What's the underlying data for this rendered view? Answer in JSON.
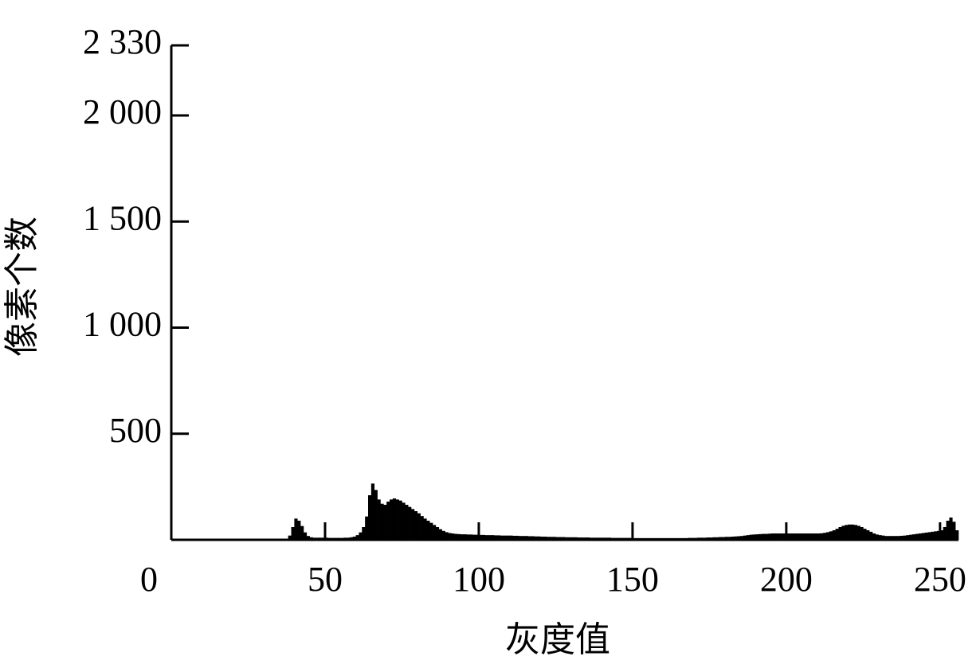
{
  "chart_data": {
    "type": "histogram",
    "x_label": "灰度值",
    "y_label": "像素个数",
    "bins": [
      0,
      1,
      2,
      3,
      4,
      5,
      6,
      7,
      8,
      9,
      10,
      11,
      12,
      13,
      14,
      15,
      16,
      17,
      18,
      19,
      20,
      21,
      22,
      23,
      24,
      25,
      26,
      27,
      28,
      29,
      30,
      31,
      32,
      33,
      34,
      35,
      36,
      37,
      38,
      39,
      40,
      41,
      42,
      43,
      44,
      45,
      46,
      47,
      48,
      49,
      50,
      51,
      52,
      53,
      54,
      55,
      56,
      57,
      58,
      59,
      60,
      61,
      62,
      63,
      64,
      65,
      66,
      67,
      68,
      69,
      70,
      71,
      72,
      73,
      74,
      75,
      76,
      77,
      78,
      79,
      80,
      81,
      82,
      83,
      84,
      85,
      86,
      87,
      88,
      89,
      90,
      91,
      92,
      93,
      94,
      95,
      96,
      97,
      98,
      99,
      100,
      101,
      102,
      103,
      104,
      105,
      106,
      107,
      108,
      109,
      110,
      111,
      112,
      113,
      114,
      115,
      116,
      117,
      118,
      119,
      120,
      121,
      122,
      123,
      124,
      125,
      126,
      127,
      128,
      129,
      130,
      131,
      132,
      133,
      134,
      135,
      136,
      137,
      138,
      139,
      140,
      141,
      142,
      143,
      144,
      145,
      146,
      147,
      148,
      149,
      150,
      151,
      152,
      153,
      154,
      155,
      156,
      157,
      158,
      159,
      160,
      161,
      162,
      163,
      164,
      165,
      166,
      167,
      168,
      169,
      170,
      171,
      172,
      173,
      174,
      175,
      176,
      177,
      178,
      179,
      180,
      181,
      182,
      183,
      184,
      185,
      186,
      187,
      188,
      189,
      190,
      191,
      192,
      193,
      194,
      195,
      196,
      197,
      198,
      199,
      200,
      201,
      202,
      203,
      204,
      205,
      206,
      207,
      208,
      209,
      210,
      211,
      212,
      213,
      214,
      215,
      216,
      217,
      218,
      219,
      220,
      221,
      222,
      223,
      224,
      225,
      226,
      227,
      228,
      229,
      230,
      231,
      232,
      233,
      234,
      235,
      236,
      237,
      238,
      239,
      240,
      241,
      242,
      243,
      244,
      245,
      246,
      247,
      248,
      249,
      250,
      251,
      252,
      253,
      254,
      255,
      256
    ],
    "values": [
      0,
      0,
      0,
      0,
      0,
      0,
      0,
      0,
      0,
      0,
      0,
      0,
      0,
      0,
      0,
      0,
      0,
      0,
      0,
      0,
      0,
      0,
      0,
      0,
      0,
      0,
      0,
      0,
      0,
      0,
      0,
      0,
      0,
      0,
      0,
      0,
      0,
      5,
      20,
      60,
      100,
      90,
      65,
      35,
      18,
      12,
      10,
      10,
      10,
      10,
      10,
      9,
      9,
      9,
      9,
      9,
      10,
      10,
      12,
      15,
      22,
      35,
      60,
      110,
      210,
      265,
      235,
      190,
      170,
      165,
      180,
      190,
      195,
      190,
      185,
      175,
      165,
      155,
      145,
      135,
      125,
      112,
      100,
      90,
      80,
      70,
      60,
      50,
      42,
      36,
      32,
      30,
      28,
      27,
      26,
      26,
      25,
      25,
      24,
      24,
      23,
      23,
      22,
      22,
      22,
      21,
      21,
      20,
      20,
      20,
      20,
      19,
      19,
      18,
      18,
      18,
      17,
      17,
      16,
      16,
      15,
      15,
      14,
      14,
      14,
      13,
      13,
      13,
      12,
      12,
      12,
      12,
      11,
      11,
      11,
      11,
      10,
      10,
      10,
      10,
      10,
      10,
      10,
      9,
      9,
      9,
      9,
      9,
      9,
      9,
      8,
      8,
      8,
      8,
      8,
      8,
      8,
      8,
      8,
      8,
      8,
      8,
      8,
      8,
      8,
      8,
      8,
      8,
      9,
      9,
      9,
      10,
      10,
      10,
      11,
      11,
      12,
      12,
      13,
      13,
      14,
      14,
      15,
      16,
      17,
      18,
      20,
      22,
      24,
      25,
      26,
      27,
      28,
      28,
      29,
      30,
      30,
      30,
      30,
      30,
      30,
      30,
      30,
      30,
      30,
      30,
      30,
      30,
      30,
      30,
      30,
      31,
      33,
      36,
      40,
      45,
      52,
      60,
      66,
      70,
      72,
      72,
      70,
      66,
      60,
      52,
      45,
      38,
      30,
      25,
      22,
      20,
      18,
      18,
      18,
      18,
      18,
      19,
      20,
      22,
      24,
      26,
      28,
      30,
      32,
      34,
      36,
      38,
      40,
      42,
      45,
      60,
      90,
      105,
      85,
      45
    ],
    "color": "#000000",
    "xlim": [
      0,
      256
    ],
    "xticks": [
      0,
      50,
      100,
      150,
      200,
      250
    ],
    "ylim": [
      0,
      2330
    ],
    "yticks": [
      500,
      {
        "value": 1000,
        "label": "1 000"
      },
      {
        "value": 1500,
        "label": "1 500"
      },
      {
        "value": 2000,
        "label": "2 000"
      },
      {
        "value": 2330,
        "label": "2 330"
      }
    ]
  }
}
